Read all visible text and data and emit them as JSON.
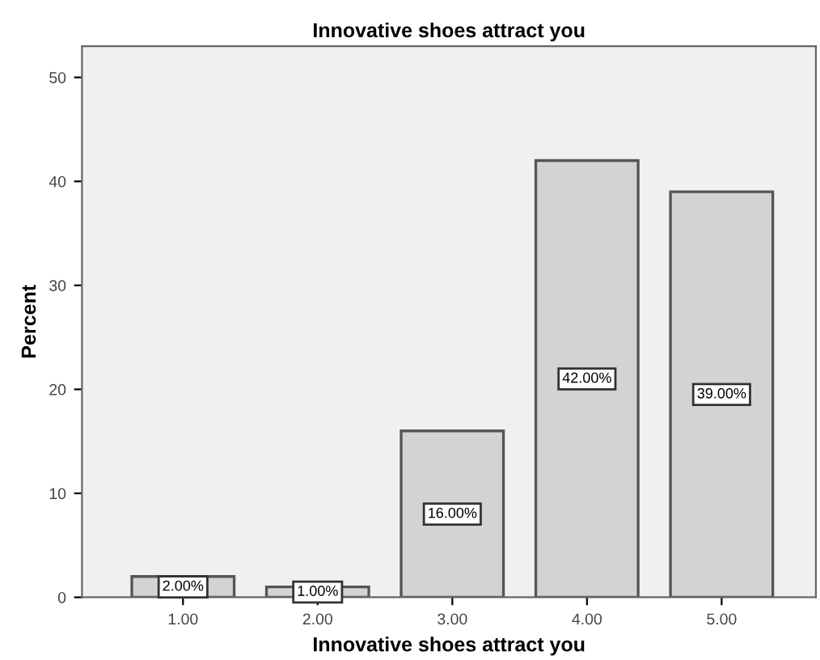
{
  "chart_data": {
    "type": "bar",
    "title": "Innovative shoes attract you",
    "xlabel": "Innovative shoes attract you",
    "ylabel": "Percent",
    "categories": [
      "1.00",
      "2.00",
      "3.00",
      "4.00",
      "5.00"
    ],
    "values": [
      2,
      1,
      16,
      42,
      39
    ],
    "value_labels": [
      "2.00%",
      "1.00%",
      "16.00%",
      "42.00%",
      "39.00%"
    ],
    "color": "#d3d3d3",
    "ylim": [
      0,
      53
    ],
    "yticks": [
      0,
      10,
      20,
      30,
      40,
      50
    ],
    "grid": false
  }
}
